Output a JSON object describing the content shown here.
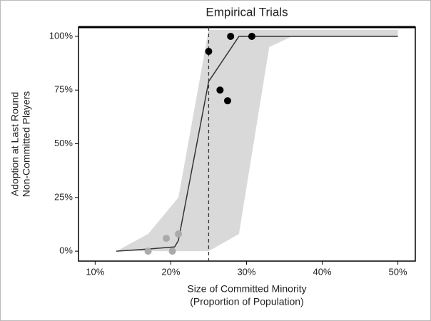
{
  "chart_data": {
    "type": "line",
    "title": "Empirical Trials",
    "xlabel": [
      "Size of Committed Minority",
      "(Proportion of Population)"
    ],
    "ylabel": [
      "Adoption at Last Round",
      "Non-Committed Players"
    ],
    "xlim": [
      7.8,
      52.3
    ],
    "ylim": [
      -4.6,
      104.3
    ],
    "xticks": [
      {
        "value": 10,
        "label": "10%"
      },
      {
        "value": 20,
        "label": "20%"
      },
      {
        "value": 30,
        "label": "30%"
      },
      {
        "value": 40,
        "label": "40%"
      },
      {
        "value": 50,
        "label": "50%"
      }
    ],
    "yticks": [
      {
        "value": 0,
        "label": "0%"
      },
      {
        "value": 25,
        "label": "25%"
      },
      {
        "value": 50,
        "label": "50%"
      },
      {
        "value": 75,
        "label": "75%"
      },
      {
        "value": 100,
        "label": "100%"
      }
    ],
    "vline": 25,
    "band": {
      "color": "#d9d9d9",
      "x": [
        12.8,
        17,
        21,
        25,
        29,
        33,
        36,
        50
      ],
      "lower": [
        0,
        0,
        0,
        0,
        8,
        95,
        100,
        100
      ],
      "upper": [
        0,
        8,
        25,
        103,
        103,
        103,
        103,
        103
      ]
    },
    "line": {
      "color": "#333333",
      "x": [
        12.8,
        17,
        20.5,
        21,
        25,
        29,
        50
      ],
      "values": [
        0,
        1,
        2,
        5,
        79,
        100,
        100
      ]
    },
    "points": [
      {
        "color": "#000000",
        "x": [
          25,
          27.9,
          30.7,
          26.5,
          27.5
        ],
        "values": [
          93,
          100,
          100,
          75,
          70
        ]
      },
      {
        "color": "#aaaaaa",
        "x": [
          17,
          19.4,
          21,
          20.2
        ],
        "values": [
          0,
          6,
          8,
          0
        ]
      }
    ]
  }
}
